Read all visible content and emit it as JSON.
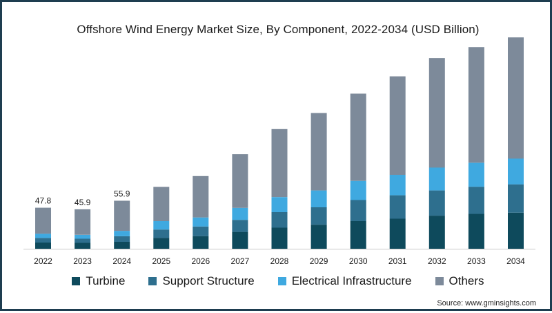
{
  "chart_data": {
    "type": "bar",
    "stacked": true,
    "title": "Offshore Wind Energy Market Size, By Component, 2022-2034 (USD Billion)",
    "categories": [
      "2022",
      "2023",
      "2024",
      "2025",
      "2026",
      "2027",
      "2028",
      "2029",
      "2030",
      "2031",
      "2032",
      "2033",
      "2034"
    ],
    "series": [
      {
        "name": "Turbine",
        "color": "#0e4a5c",
        "values": [
          7.2,
          6.9,
          8.1,
          12.6,
          14.7,
          19.6,
          24.5,
          28.0,
          32.2,
          35.0,
          38.5,
          40.6,
          42.0
        ]
      },
      {
        "name": "Support Structure",
        "color": "#2e6f8e",
        "values": [
          5.3,
          4.8,
          6.4,
          9.8,
          11.2,
          14.0,
          18.2,
          20.3,
          24.5,
          27.3,
          29.4,
          31.5,
          32.9
        ]
      },
      {
        "name": "Electrical Infrastructure",
        "color": "#3fa9e0",
        "values": [
          5.0,
          4.5,
          6.3,
          9.8,
          10.5,
          14.0,
          17.5,
          19.6,
          22.4,
          23.8,
          26.6,
          28.0,
          30.1
        ]
      },
      {
        "name": "Others",
        "color": "#7d8a9a",
        "values": [
          30.3,
          29.7,
          35.1,
          39.8,
          48.2,
          62.5,
          79.1,
          90.1,
          101.5,
          114.6,
          127.4,
          134.6,
          141.1
        ]
      }
    ],
    "data_labels": [
      {
        "category": "2022",
        "text": "47.8"
      },
      {
        "category": "2023",
        "text": "45.9"
      },
      {
        "category": "2024",
        "text": "55.9"
      }
    ],
    "ylim": [
      0,
      255
    ],
    "xlabel": "",
    "ylabel": "",
    "grid": false,
    "legend_position": "bottom"
  },
  "source_text": "Source: www.gminsights.com"
}
